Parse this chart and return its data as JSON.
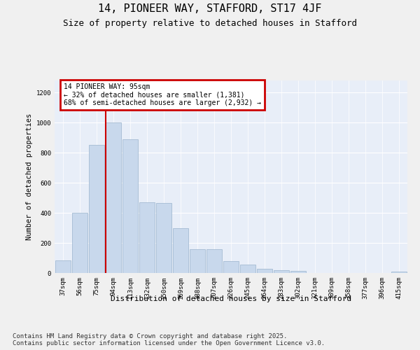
{
  "title": "14, PIONEER WAY, STAFFORD, ST17 4JF",
  "subtitle": "Size of property relative to detached houses in Stafford",
  "xlabel": "Distribution of detached houses by size in Stafford",
  "ylabel": "Number of detached properties",
  "bar_color": "#c8d8ec",
  "bar_edgecolor": "#9ab3cc",
  "bg_color": "#e8eef8",
  "grid_color": "#ffffff",
  "vline_color": "#cc0000",
  "annotation_text": "14 PIONEER WAY: 95sqm\n← 32% of detached houses are smaller (1,381)\n68% of semi-detached houses are larger (2,932) →",
  "ann_box_fc": "#ffffff",
  "ann_box_ec": "#cc0000",
  "categories": [
    "37sqm",
    "56sqm",
    "75sqm",
    "94sqm",
    "113sqm",
    "132sqm",
    "150sqm",
    "169sqm",
    "188sqm",
    "207sqm",
    "226sqm",
    "245sqm",
    "264sqm",
    "283sqm",
    "302sqm",
    "321sqm",
    "339sqm",
    "358sqm",
    "377sqm",
    "396sqm",
    "415sqm"
  ],
  "values": [
    85,
    400,
    850,
    1000,
    890,
    470,
    465,
    300,
    160,
    160,
    80,
    55,
    30,
    20,
    13,
    2,
    2,
    2,
    2,
    2,
    8
  ],
  "ylim": [
    0,
    1280
  ],
  "yticks": [
    0,
    200,
    400,
    600,
    800,
    1000,
    1200
  ],
  "footer": "Contains HM Land Registry data © Crown copyright and database right 2025.\nContains public sector information licensed under the Open Government Licence v3.0.",
  "title_fontsize": 11,
  "subtitle_fontsize": 9,
  "footer_fontsize": 6.5,
  "tick_fontsize": 6.5,
  "ylabel_fontsize": 7.5,
  "xlabel_fontsize": 8
}
